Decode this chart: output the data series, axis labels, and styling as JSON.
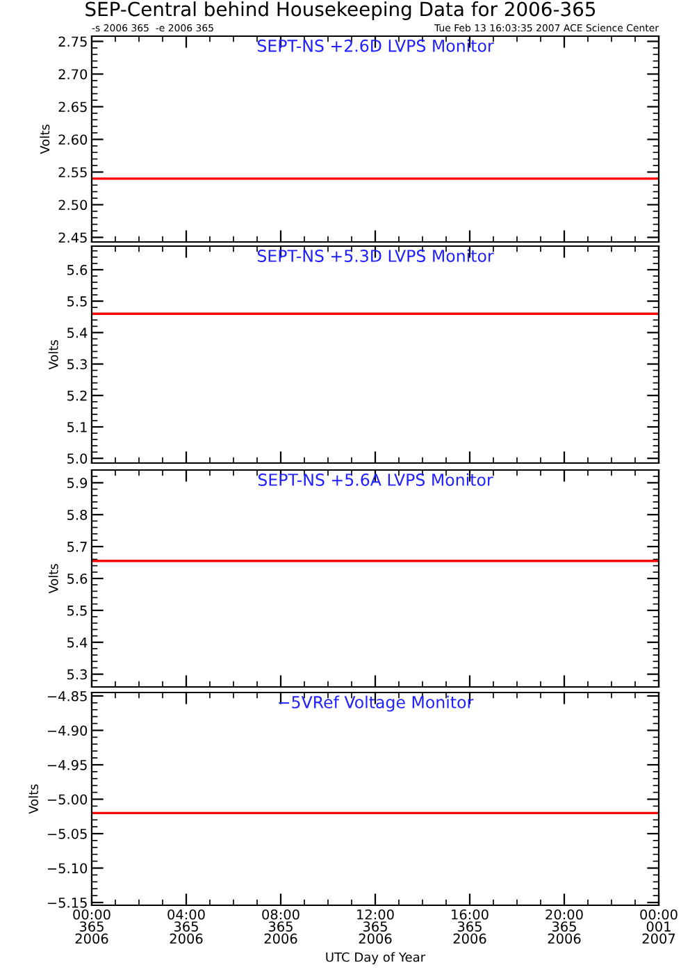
{
  "chart_data": [
    {
      "type": "line",
      "title": "SEPT-NS +2.6D LVPS Monitor",
      "ylabel": "Volts",
      "annotations": [
        "SEP-Central behind Housekeeping Data for 2006-365",
        "-s 2006 365  -e 2006 365",
        "Tue Feb 13 16:03:35 2007 ACE Science Center"
      ],
      "x": [
        "2006-12-31T00:00",
        "2007-01-01T00:00"
      ],
      "series": [
        {
          "color": "#ff0000",
          "values": [
            2.54,
            2.54
          ]
        }
      ],
      "xlim": [
        "2006-12-31T00:00",
        "2007-01-01T00:00"
      ],
      "xticks": [
        "2006-12-31T00:00",
        "2006-12-31T04:00",
        "2006-12-31T08:00",
        "2006-12-31T12:00",
        "2006-12-31T16:00",
        "2006-12-31T20:00",
        "2007-01-01T00:00"
      ],
      "ylim": [
        2.443,
        2.758
      ],
      "yticks": [
        {
          "value": 2.45,
          "label": "2.45"
        },
        {
          "value": 2.5,
          "label": "2.50"
        },
        {
          "value": 2.55,
          "label": "2.55"
        },
        {
          "value": 2.6,
          "label": "2.60"
        },
        {
          "value": 2.65,
          "label": "2.65"
        },
        {
          "value": 2.7,
          "label": "2.70"
        },
        {
          "value": 2.75,
          "label": "2.75"
        }
      ],
      "tick_labels": "y",
      "grid": false
    },
    {
      "type": "line",
      "title": "SEPT-NS +5.3D LVPS Monitor",
      "ylabel": "Volts",
      "x": [
        "2006-12-31T00:00",
        "2007-01-01T00:00"
      ],
      "series": [
        {
          "color": "#ff0000",
          "values": [
            5.46,
            5.46
          ]
        }
      ],
      "xlim": [
        "2006-12-31T00:00",
        "2007-01-01T00:00"
      ],
      "xticks": [
        "2006-12-31T00:00",
        "2006-12-31T04:00",
        "2006-12-31T08:00",
        "2006-12-31T12:00",
        "2006-12-31T16:00",
        "2006-12-31T20:00",
        "2007-01-01T00:00"
      ],
      "ylim": [
        4.985,
        5.675
      ],
      "yticks": [
        {
          "value": 5.0,
          "label": "5.0"
        },
        {
          "value": 5.1,
          "label": "5.1"
        },
        {
          "value": 5.2,
          "label": "5.2"
        },
        {
          "value": 5.3,
          "label": "5.3"
        },
        {
          "value": 5.4,
          "label": "5.4"
        },
        {
          "value": 5.5,
          "label": "5.5"
        },
        {
          "value": 5.6,
          "label": "5.6"
        }
      ],
      "tick_labels": "y",
      "grid": false
    },
    {
      "type": "line",
      "title": "SEPT-NS +5.6A LVPS Monitor",
      "ylabel": "Volts",
      "x": [
        "2006-12-31T00:00",
        "2007-01-01T00:00"
      ],
      "series": [
        {
          "color": "#ff0000",
          "values": [
            5.655,
            5.655
          ]
        }
      ],
      "xlim": [
        "2006-12-31T00:00",
        "2007-01-01T00:00"
      ],
      "xticks": [
        "2006-12-31T00:00",
        "2006-12-31T04:00",
        "2006-12-31T08:00",
        "2006-12-31T12:00",
        "2006-12-31T16:00",
        "2006-12-31T20:00",
        "2007-01-01T00:00"
      ],
      "ylim": [
        5.26,
        5.94
      ],
      "yticks": [
        {
          "value": 5.3,
          "label": "5.3"
        },
        {
          "value": 5.4,
          "label": "5.4"
        },
        {
          "value": 5.5,
          "label": "5.5"
        },
        {
          "value": 5.6,
          "label": "5.6"
        },
        {
          "value": 5.7,
          "label": "5.7"
        },
        {
          "value": 5.8,
          "label": "5.8"
        },
        {
          "value": 5.9,
          "label": "5.9"
        }
      ],
      "tick_labels": "y",
      "grid": false
    },
    {
      "type": "line",
      "title": "−5VRef Voltage Monitor",
      "ylabel": "Volts",
      "xlabel": "UTC Day of Year",
      "x": [
        "2006-12-31T00:00",
        "2007-01-01T00:00"
      ],
      "series": [
        {
          "color": "#ff0000",
          "values": [
            -5.02,
            -5.02
          ]
        }
      ],
      "xlim": [
        "2006-12-31T00:00",
        "2007-01-01T00:00"
      ],
      "xticks": [
        {
          "value": "2006-12-31T00:00",
          "label": "00:00\n365\n2006"
        },
        {
          "value": "2006-12-31T04:00",
          "label": "04:00\n365\n2006"
        },
        {
          "value": "2006-12-31T08:00",
          "label": "08:00\n365\n2006"
        },
        {
          "value": "2006-12-31T12:00",
          "label": "12:00\n365\n2006"
        },
        {
          "value": "2006-12-31T16:00",
          "label": "16:00\n365\n2006"
        },
        {
          "value": "2006-12-31T20:00",
          "label": "20:00\n365\n2006"
        },
        {
          "value": "2007-01-01T00:00",
          "label": "00:00\n001\n2007"
        }
      ],
      "ylim": [
        -5.154,
        -4.845
      ],
      "yticks": [
        {
          "value": -5.15,
          "label": "−5.15"
        },
        {
          "value": -5.1,
          "label": "−5.10"
        },
        {
          "value": -5.05,
          "label": "−5.05"
        },
        {
          "value": -5.0,
          "label": "−5.00"
        },
        {
          "value": -4.95,
          "label": "−4.95"
        },
        {
          "value": -4.9,
          "label": "−4.90"
        },
        {
          "value": -4.85,
          "label": "−4.85"
        }
      ],
      "grid": false
    }
  ]
}
